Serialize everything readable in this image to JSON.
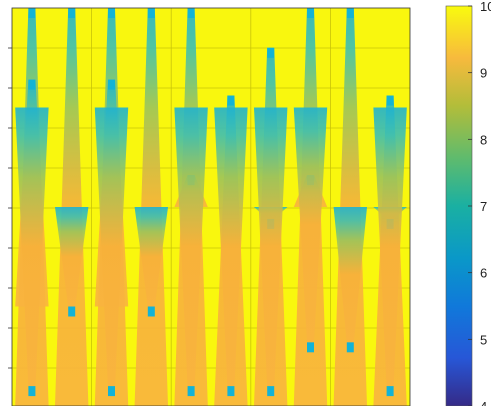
{
  "chart_data": {
    "type": "heatmap",
    "description_colormap": "parula",
    "colorbar": {
      "min": 4,
      "max": 10,
      "tick_labels": [
        "10",
        "9",
        "8",
        "7",
        "6",
        "5",
        "4"
      ],
      "tick_values": [
        10,
        9,
        8,
        7,
        6,
        5,
        4
      ]
    },
    "grid": true,
    "background_value": 10,
    "columns": [
      {
        "spikes": [
          {
            "peak_value": 6.4,
            "base_value": 10,
            "segment": [
              0,
              1
            ],
            "top": 1.0
          },
          {
            "peak_value": 6.4,
            "segment": [
              1,
              3
            ],
            "top": 0.82
          },
          {
            "peak_value": 6.4,
            "segment": [
              3,
              4
            ],
            "top": 0.05
          }
        ]
      },
      {
        "spikes": [
          {
            "peak_value": 6.4,
            "segment": [
              0,
              2
            ],
            "top": 1.0
          },
          {
            "peak_value": 6.4,
            "segment": [
              2,
              4
            ],
            "top": 0.25
          }
        ]
      },
      {
        "spikes": [
          {
            "peak_value": 6.4,
            "segment": [
              0,
              1
            ],
            "top": 1.0
          },
          {
            "peak_value": 6.4,
            "segment": [
              1,
              3
            ],
            "top": 0.82
          },
          {
            "peak_value": 6.4,
            "segment": [
              3,
              4
            ],
            "top": 0.05
          }
        ]
      },
      {
        "spikes": [
          {
            "peak_value": 6.4,
            "segment": [
              0,
              2
            ],
            "top": 1.0
          },
          {
            "peak_value": 6.4,
            "segment": [
              2,
              4
            ],
            "top": 0.25
          }
        ]
      },
      {
        "spikes": [
          {
            "peak_value": 6.4,
            "segment": [
              0,
              2
            ],
            "top": 1.0
          },
          {
            "peak_value": 6.4,
            "segment": [
              2,
              4
            ],
            "top": 0.58
          },
          {
            "peak_value": 6.4,
            "segment": [
              3,
              4
            ],
            "top": 0.05
          }
        ]
      },
      {
        "spikes": [
          {
            "peak_value": 6.4,
            "segment": [
              0,
              4
            ],
            "top": 0.78
          },
          {
            "peak_value": 6.4,
            "segment": [
              3,
              4
            ],
            "top": 0.05
          }
        ]
      },
      {
        "spikes": [
          {
            "peak_value": 6.4,
            "segment": [
              0,
              2
            ],
            "top": 0.9
          },
          {
            "peak_value": 6.4,
            "segment": [
              2,
              4
            ],
            "top": 0.47
          },
          {
            "peak_value": 6.4,
            "segment": [
              3,
              4
            ],
            "top": 0.05
          }
        ]
      },
      {
        "spikes": [
          {
            "peak_value": 6.4,
            "segment": [
              0,
              2
            ],
            "top": 1.0
          },
          {
            "peak_value": 6.4,
            "segment": [
              2,
              4
            ],
            "top": 0.58
          },
          {
            "peak_value": 6.4,
            "segment": [
              3,
              4
            ],
            "top": 0.16
          }
        ]
      },
      {
        "spikes": [
          {
            "peak_value": 6.4,
            "segment": [
              0,
              2
            ],
            "top": 1.0
          },
          {
            "peak_value": 6.4,
            "segment": [
              2,
              4
            ],
            "top": 0.16
          }
        ]
      },
      {
        "spikes": [
          {
            "peak_value": 6.4,
            "segment": [
              0,
              4
            ],
            "top": 0.78
          },
          {
            "peak_value": 6.4,
            "segment": [
              2,
              4
            ],
            "top": 0.47
          },
          {
            "peak_value": 6.4,
            "segment": [
              3,
              4
            ],
            "top": 0.05
          }
        ]
      }
    ]
  }
}
